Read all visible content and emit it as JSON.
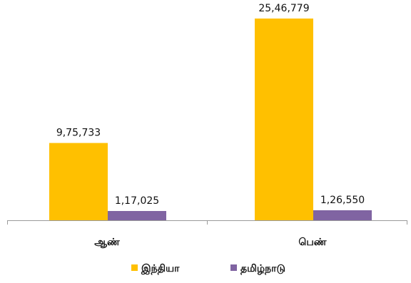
{
  "chart_data": {
    "type": "bar",
    "categories": [
      "ஆண்",
      "பெண்"
    ],
    "series": [
      {
        "name": "இந்தியா",
        "color": "#FFC000",
        "values": [
          975733,
          2546779
        ],
        "labels": [
          "9,75,733",
          "25,46,779"
        ]
      },
      {
        "name": "தமிழ்நாடு",
        "color": "#8064A2",
        "values": [
          117025,
          126550
        ],
        "labels": [
          "1,17,025",
          "1,26,550"
        ]
      }
    ],
    "ylim": [
      0,
      2600000
    ],
    "grid": false,
    "legend_position": "bottom"
  }
}
